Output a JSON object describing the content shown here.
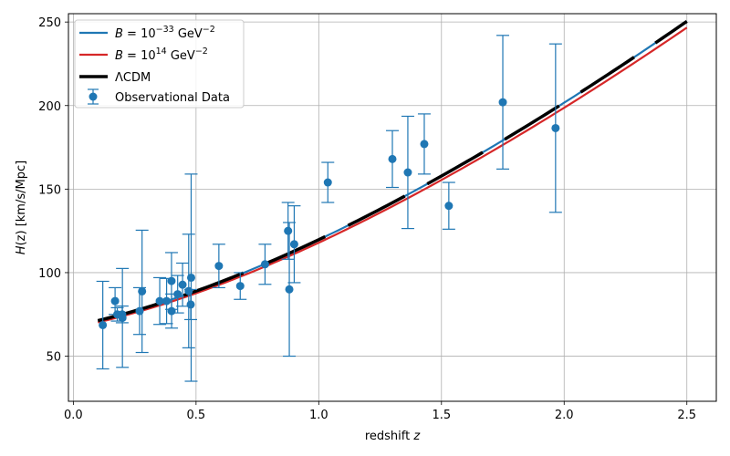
{
  "chart_data": {
    "type": "line",
    "xlabel": "redshift z",
    "ylabel": "H(z) [km/s/Mpc]",
    "xlim": [
      -0.02,
      2.62
    ],
    "ylim": [
      23,
      255
    ],
    "xticks": [
      0.0,
      0.5,
      1.0,
      1.5,
      2.0,
      2.5
    ],
    "xtick_labels": [
      "0.0",
      "0.5",
      "1.0",
      "1.5",
      "2.0",
      "2.5"
    ],
    "yticks": [
      50,
      100,
      150,
      200,
      250
    ],
    "ytick_labels": [
      "50",
      "100",
      "150",
      "200",
      "250"
    ],
    "grid": true,
    "legend_position": "top-left",
    "legend": [
      {
        "label_main": "B = 10",
        "label_exp": "−33",
        "label_unit": " GeV",
        "label_unit_exp": "−2",
        "color": "#1f77b4",
        "style": "line"
      },
      {
        "label_main": "B = 10",
        "label_exp": "14",
        "label_unit": " GeV",
        "label_unit_exp": "−2",
        "color": "#d62728",
        "style": "line"
      },
      {
        "label_main": "ΛCDM",
        "label_exp": "",
        "label_unit": "",
        "label_unit_exp": "",
        "color": "#000000",
        "style": "dashed-thick"
      },
      {
        "label_main": "Observational Data",
        "label_exp": "",
        "label_unit": "",
        "label_unit_exp": "",
        "color": "#1f77b4",
        "style": "errorbar"
      }
    ],
    "model": {
      "H0": 68,
      "Om": 0.3,
      "z_start": 0.1,
      "z_end": 2.5
    },
    "series": [
      {
        "name": "B = 10^-33 GeV^-2",
        "color": "#1f77b4",
        "scale": 1.0
      },
      {
        "name": "B = 10^14 GeV^-2",
        "color": "#d62728",
        "scale": 0.985
      },
      {
        "name": "ΛCDM",
        "color": "#000000",
        "scale": 1.0
      }
    ],
    "observations": [
      {
        "z": 0.12,
        "H": 68.6,
        "err": 26.2
      },
      {
        "z": 0.17,
        "H": 83.0,
        "err": 8.0
      },
      {
        "z": 0.179,
        "H": 75.0,
        "err": 4.0
      },
      {
        "z": 0.199,
        "H": 75.0,
        "err": 5.0
      },
      {
        "z": 0.2,
        "H": 72.9,
        "err": 29.6
      },
      {
        "z": 0.27,
        "H": 77.0,
        "err": 14.0
      },
      {
        "z": 0.28,
        "H": 88.8,
        "err": 36.6
      },
      {
        "z": 0.352,
        "H": 83.0,
        "err": 14.0
      },
      {
        "z": 0.38,
        "H": 83.0,
        "err": 13.5
      },
      {
        "z": 0.4,
        "H": 95.0,
        "err": 17.0
      },
      {
        "z": 0.4004,
        "H": 77.0,
        "err": 10.2
      },
      {
        "z": 0.425,
        "H": 87.1,
        "err": 11.2
      },
      {
        "z": 0.445,
        "H": 92.8,
        "err": 12.9
      },
      {
        "z": 0.47,
        "H": 89.0,
        "err": 34.0
      },
      {
        "z": 0.4783,
        "H": 80.9,
        "err": 9.0
      },
      {
        "z": 0.48,
        "H": 97.0,
        "err": 62.0
      },
      {
        "z": 0.593,
        "H": 104.0,
        "err": 13.0
      },
      {
        "z": 0.68,
        "H": 92.0,
        "err": 8.0
      },
      {
        "z": 0.781,
        "H": 105.0,
        "err": 12.0
      },
      {
        "z": 0.875,
        "H": 125.0,
        "err": 17.0
      },
      {
        "z": 0.88,
        "H": 90.0,
        "err": 40.0
      },
      {
        "z": 0.9,
        "H": 117.0,
        "err": 23.0
      },
      {
        "z": 1.037,
        "H": 154.0,
        "err": 12.0
      },
      {
        "z": 1.3,
        "H": 168.0,
        "err": 17.0
      },
      {
        "z": 1.363,
        "H": 160.0,
        "err": 33.6
      },
      {
        "z": 1.43,
        "H": 177.0,
        "err": 18.0
      },
      {
        "z": 1.53,
        "H": 140.0,
        "err": 14.0
      },
      {
        "z": 1.75,
        "H": 202.0,
        "err": 40.0
      },
      {
        "z": 1.965,
        "H": 186.5,
        "err": 50.4
      }
    ]
  }
}
